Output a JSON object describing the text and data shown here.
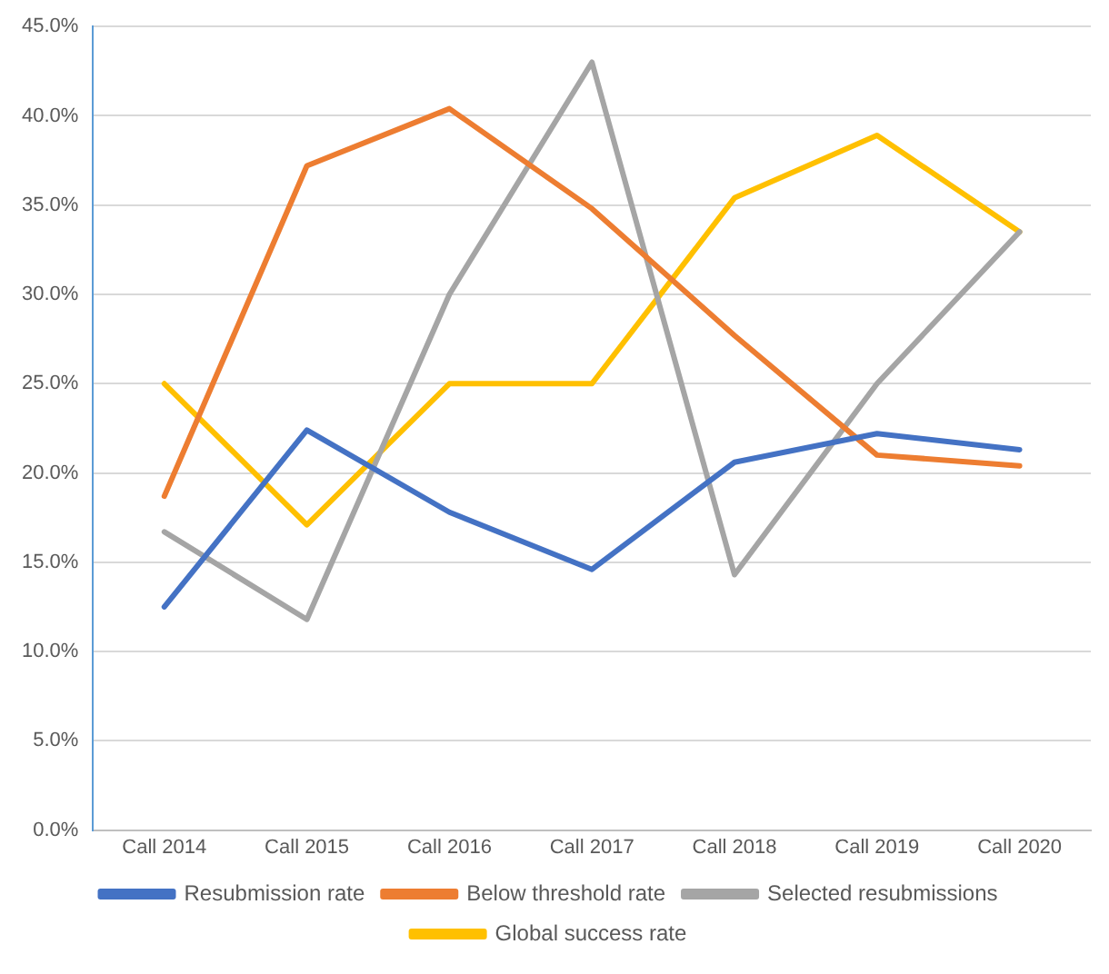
{
  "chart_data": {
    "type": "line",
    "categories": [
      "Call 2014",
      "Call 2015",
      "Call 2016",
      "Call 2017",
      "Call 2018",
      "Call 2019",
      "Call 2020"
    ],
    "series": [
      {
        "name": "Resubmission rate",
        "color": "#4472c4",
        "values": [
          12.5,
          22.4,
          17.8,
          14.6,
          20.6,
          22.2,
          21.3
        ]
      },
      {
        "name": "Below threshold rate",
        "color": "#ed7d31",
        "values": [
          18.7,
          37.2,
          40.4,
          34.8,
          27.7,
          21.0,
          20.4
        ]
      },
      {
        "name": "Selected resubmissions",
        "color": "#a5a5a5",
        "values": [
          16.7,
          11.8,
          30.0,
          43.0,
          14.3,
          25.0,
          33.5
        ]
      },
      {
        "name": "Global success rate",
        "color": "#ffc000",
        "values": [
          25.0,
          17.1,
          25.0,
          25.0,
          35.4,
          38.9,
          33.5
        ]
      }
    ],
    "ylim": [
      0,
      45
    ],
    "yticks": [
      {
        "value": 0,
        "label": "0.0%"
      },
      {
        "value": 5,
        "label": "5.0%"
      },
      {
        "value": 10,
        "label": "10.0%"
      },
      {
        "value": 15,
        "label": "15.0%"
      },
      {
        "value": 20,
        "label": "20.0%"
      },
      {
        "value": 25,
        "label": "25.0%"
      },
      {
        "value": 30,
        "label": "30.0%"
      },
      {
        "value": 35,
        "label": "35.0%"
      },
      {
        "value": 40,
        "label": "40.0%"
      },
      {
        "value": 45,
        "label": "45.0%"
      }
    ],
    "grid": "y",
    "legend": "bottom",
    "marker": "none",
    "line_style": "solid"
  }
}
